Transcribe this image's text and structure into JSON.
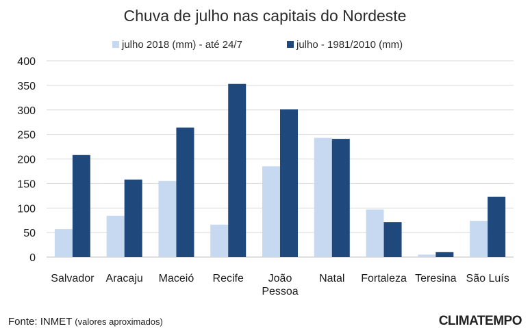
{
  "chart_data": {
    "type": "bar",
    "title": "Chuva de julho nas capitais do Nordeste",
    "categories": [
      [
        "Salvador"
      ],
      [
        "Aracaju"
      ],
      [
        "Maceió"
      ],
      [
        "Recife"
      ],
      [
        "João",
        "Pessoa"
      ],
      [
        "Natal"
      ],
      [
        "Fortaleza"
      ],
      [
        "Teresina"
      ],
      [
        "São Luís"
      ]
    ],
    "series": [
      {
        "name": "julho 2018 (mm) - até 24/7",
        "color": "#c6d9f1",
        "values": [
          57,
          84,
          155,
          66,
          185,
          243,
          97,
          5,
          74
        ]
      },
      {
        "name": "julho - 1981/2010 (mm)",
        "color": "#1f497d",
        "values": [
          208,
          158,
          264,
          353,
          301,
          241,
          71,
          10,
          123
        ]
      }
    ],
    "ylim": [
      0,
      400
    ],
    "yticks": [
      0,
      50,
      100,
      150,
      200,
      250,
      300,
      350,
      400
    ],
    "grid": true,
    "legend_position": "top"
  },
  "footer": {
    "source_label": "Fonte: INMET",
    "source_note": "(valores aproximados)",
    "logo_text": "CLIMATEMPO"
  }
}
